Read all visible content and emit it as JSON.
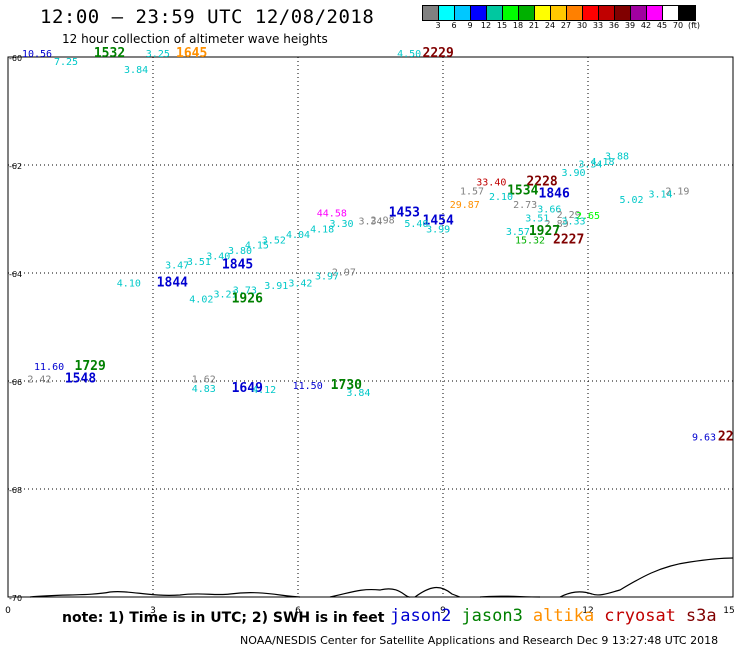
{
  "header": {
    "title": "12:00 – 23:59 UTC 12/08/2018",
    "subtitle": "12 hour collection of altimeter wave heights"
  },
  "colorbar": {
    "colors": [
      "#808080",
      "#00ffff",
      "#00c8ff",
      "#0000ff",
      "#00c8a0",
      "#00ff00",
      "#00b000",
      "#ffff00",
      "#ffc800",
      "#ff8000",
      "#ff0000",
      "#c00000",
      "#800000",
      "#a000a0",
      "#ff00ff",
      "#ffffff",
      "#000000"
    ],
    "labels": [
      "3",
      "6",
      "9",
      "12",
      "15",
      "18",
      "21",
      "24",
      "27",
      "30",
      "33",
      "36",
      "39",
      "42",
      "45",
      "70",
      "(ft)"
    ]
  },
  "axes": {
    "y_labels": [
      "-60",
      "-62",
      "-64",
      "-66",
      "-68",
      "-70"
    ],
    "x_labels": [
      "0",
      "3",
      "6",
      "9",
      "12",
      "15"
    ]
  },
  "legend": {
    "note": "note: 1) Time is in UTC; 2) SWH is in feet",
    "satellites": [
      {
        "name": "jason2",
        "color": "#0000d0"
      },
      {
        "name": "jason3",
        "color": "#008000"
      },
      {
        "name": "altika",
        "color": "#ff9000"
      },
      {
        "name": "cryosat",
        "color": "#c00000"
      },
      {
        "name": "s3a",
        "color": "#800000"
      }
    ]
  },
  "credit": "NOAA/NESDIS Center for Satellite Applications and Research   Dec  9 13:27:48 UTC 2018",
  "observations": [
    {
      "text": "10.56",
      "color": "#0000d0",
      "x": 0.6,
      "y": -60.0,
      "size": 10
    },
    {
      "text": "1532",
      "color": "#008000",
      "x": 2.1,
      "y": -60.0,
      "size": 13,
      "bold": true
    },
    {
      "text": "7.25",
      "color": "#00c8c8",
      "x": 1.2,
      "y": -60.15,
      "size": 10
    },
    {
      "text": "3.84",
      "color": "#00c8c8",
      "x": 2.65,
      "y": -60.3,
      "size": 10
    },
    {
      "text": "3.25",
      "color": "#00c8c8",
      "x": 3.1,
      "y": -60.0,
      "size": 10
    },
    {
      "text": "1645",
      "color": "#ff9000",
      "x": 3.8,
      "y": -60.0,
      "size": 13,
      "bold": true
    },
    {
      "text": "4.50",
      "color": "#00c8c8",
      "x": 8.3,
      "y": -60.0,
      "size": 10
    },
    {
      "text": "2229",
      "color": "#800000",
      "x": 8.9,
      "y": -60.0,
      "size": 13,
      "bold": true
    },
    {
      "text": "3.88",
      "color": "#00c8c8",
      "x": 12.6,
      "y": -61.9,
      "size": 10
    },
    {
      "text": "4.18",
      "color": "#00c8c8",
      "x": 12.3,
      "y": -62.0,
      "size": 10
    },
    {
      "text": "3.34",
      "color": "#00c8c8",
      "x": 12.05,
      "y": -62.05,
      "size": 10
    },
    {
      "text": "3.90",
      "color": "#00c8c8",
      "x": 11.7,
      "y": -62.2,
      "size": 10
    },
    {
      "text": "33.40",
      "color": "#c00000",
      "x": 10.0,
      "y": -62.38,
      "size": 10
    },
    {
      "text": "2228",
      "color": "#800000",
      "x": 11.05,
      "y": -62.38,
      "size": 13,
      "bold": true
    },
    {
      "text": "1.57",
      "color": "#808080",
      "x": 9.6,
      "y": -62.55,
      "size": 10
    },
    {
      "text": "1534",
      "color": "#008000",
      "x": 10.65,
      "y": -62.55,
      "size": 13,
      "bold": true
    },
    {
      "text": "1846",
      "color": "#0000d0",
      "x": 11.3,
      "y": -62.6,
      "size": 13,
      "bold": true
    },
    {
      "text": "2.10",
      "color": "#00c8c8",
      "x": 10.2,
      "y": -62.65,
      "size": 10
    },
    {
      "text": "2.19",
      "color": "#808080",
      "x": 13.85,
      "y": -62.55,
      "size": 10
    },
    {
      "text": "3.14",
      "color": "#00c8c8",
      "x": 13.5,
      "y": -62.6,
      "size": 10
    },
    {
      "text": "5.02",
      "color": "#00c8c8",
      "x": 12.9,
      "y": -62.7,
      "size": 10
    },
    {
      "text": "29.87",
      "color": "#ff9000",
      "x": 9.45,
      "y": -62.8,
      "size": 10
    },
    {
      "text": "2.73",
      "color": "#808080",
      "x": 10.7,
      "y": -62.8,
      "size": 10
    },
    {
      "text": "3.66",
      "color": "#00c8c8",
      "x": 11.2,
      "y": -62.88,
      "size": 10
    },
    {
      "text": "2.29",
      "color": "#808080",
      "x": 11.6,
      "y": -62.98,
      "size": 10
    },
    {
      "text": "2.65",
      "color": "#00ff00",
      "x": 12.0,
      "y": -63.0,
      "size": 10
    },
    {
      "text": "3.51",
      "color": "#00c8c8",
      "x": 10.95,
      "y": -63.05,
      "size": 10
    },
    {
      "text": "1453",
      "color": "#0000d0",
      "x": 8.2,
      "y": -62.95,
      "size": 13,
      "bold": true
    },
    {
      "text": "44.58",
      "color": "#ff00ff",
      "x": 6.7,
      "y": -62.95,
      "size": 10
    },
    {
      "text": "1454",
      "color": "#0000d0",
      "x": 8.9,
      "y": -63.1,
      "size": 13,
      "bold": true
    },
    {
      "text": "2.98",
      "color": "#808080",
      "x": 7.75,
      "y": -63.08,
      "size": 10
    },
    {
      "text": "3.34",
      "color": "#808080",
      "x": 7.5,
      "y": -63.1,
      "size": 10
    },
    {
      "text": "5.40",
      "color": "#00c8c8",
      "x": 8.45,
      "y": -63.15,
      "size": 10
    },
    {
      "text": "3.99",
      "color": "#00c8c8",
      "x": 8.9,
      "y": -63.25,
      "size": 10
    },
    {
      "text": "2.89",
      "color": "#808080",
      "x": 11.35,
      "y": -63.15,
      "size": 10
    },
    {
      "text": "3.33",
      "color": "#00c8c8",
      "x": 11.7,
      "y": -63.1,
      "size": 10
    },
    {
      "text": "3.30",
      "color": "#00c8c8",
      "x": 6.9,
      "y": -63.15,
      "size": 10
    },
    {
      "text": "4.18",
      "color": "#00c8c8",
      "x": 6.5,
      "y": -63.25,
      "size": 10
    },
    {
      "text": "4.04",
      "color": "#00c8c8",
      "x": 6.0,
      "y": -63.35,
      "size": 10
    },
    {
      "text": "3.57",
      "color": "#00c8c8",
      "x": 10.55,
      "y": -63.3,
      "size": 10
    },
    {
      "text": "1927",
      "color": "#008000",
      "x": 11.1,
      "y": -63.3,
      "size": 13,
      "bold": true
    },
    {
      "text": "15.32",
      "color": "#00b000",
      "x": 10.8,
      "y": -63.45,
      "size": 10
    },
    {
      "text": "2227",
      "color": "#800000",
      "x": 11.6,
      "y": -63.45,
      "size": 13,
      "bold": true
    },
    {
      "text": "3.52",
      "color": "#00c8c8",
      "x": 5.5,
      "y": -63.45,
      "size": 10
    },
    {
      "text": "4.15",
      "color": "#00c8c8",
      "x": 5.15,
      "y": -63.55,
      "size": 10
    },
    {
      "text": "3.80",
      "color": "#00c8c8",
      "x": 4.8,
      "y": -63.65,
      "size": 10
    },
    {
      "text": "3.40",
      "color": "#00c8c8",
      "x": 4.35,
      "y": -63.75,
      "size": 10
    },
    {
      "text": "3.51",
      "color": "#00c8c8",
      "x": 3.95,
      "y": -63.85,
      "size": 10
    },
    {
      "text": "3.47",
      "color": "#00c8c8",
      "x": 3.5,
      "y": -63.92,
      "size": 10
    },
    {
      "text": "1845",
      "color": "#0000d0",
      "x": 4.75,
      "y": -63.92,
      "size": 13,
      "bold": true
    },
    {
      "text": "2.97",
      "color": "#808080",
      "x": 6.95,
      "y": -64.05,
      "size": 10
    },
    {
      "text": "3.97",
      "color": "#00c8c8",
      "x": 6.6,
      "y": -64.12,
      "size": 10
    },
    {
      "text": "4.10",
      "color": "#00c8c8",
      "x": 2.5,
      "y": -64.25,
      "size": 10
    },
    {
      "text": "1844",
      "color": "#0000d0",
      "x": 3.4,
      "y": -64.25,
      "size": 13,
      "bold": true
    },
    {
      "text": "3.42",
      "color": "#00c8c8",
      "x": 6.05,
      "y": -64.25,
      "size": 10
    },
    {
      "text": "3.91",
      "color": "#00c8c8",
      "x": 5.55,
      "y": -64.3,
      "size": 10
    },
    {
      "text": "3.73",
      "color": "#00c8c8",
      "x": 4.9,
      "y": -64.38,
      "size": 10
    },
    {
      "text": "3.21",
      "color": "#00c8c8",
      "x": 4.5,
      "y": -64.45,
      "size": 10
    },
    {
      "text": "4.02",
      "color": "#00c8c8",
      "x": 4.0,
      "y": -64.55,
      "size": 10
    },
    {
      "text": "1926",
      "color": "#008000",
      "x": 4.95,
      "y": -64.55,
      "size": 13,
      "bold": true
    },
    {
      "text": "11.60",
      "color": "#0000d0",
      "x": 0.85,
      "y": -65.8,
      "size": 10
    },
    {
      "text": "1729",
      "color": "#008000",
      "x": 1.7,
      "y": -65.8,
      "size": 13,
      "bold": true
    },
    {
      "text": "2.42",
      "color": "#808080",
      "x": 0.65,
      "y": -66.03,
      "size": 10
    },
    {
      "text": "1548",
      "color": "#0000d0",
      "x": 1.5,
      "y": -66.03,
      "size": 13,
      "bold": true
    },
    {
      "text": "1.62",
      "color": "#808080",
      "x": 4.05,
      "y": -66.03,
      "size": 10
    },
    {
      "text": "4.83",
      "color": "#00c8c8",
      "x": 4.05,
      "y": -66.2,
      "size": 10
    },
    {
      "text": "1649",
      "color": "#0000d0",
      "x": 4.95,
      "y": -66.2,
      "size": 13,
      "bold": true
    },
    {
      "text": "4.12",
      "color": "#00c8c8",
      "x": 5.3,
      "y": -66.22,
      "size": 10
    },
    {
      "text": "11.50",
      "color": "#0000d0",
      "x": 6.2,
      "y": -66.15,
      "size": 10
    },
    {
      "text": "1730",
      "color": "#008000",
      "x": 7.0,
      "y": -66.15,
      "size": 13,
      "bold": true
    },
    {
      "text": "3.84",
      "color": "#00c8c8",
      "x": 7.25,
      "y": -66.28,
      "size": 10
    },
    {
      "text": "9.63",
      "color": "#0000d0",
      "x": 14.4,
      "y": -67.1,
      "size": 10
    },
    {
      "text": "22",
      "color": "#800000",
      "x": 14.85,
      "y": -67.1,
      "size": 13,
      "bold": true
    }
  ]
}
